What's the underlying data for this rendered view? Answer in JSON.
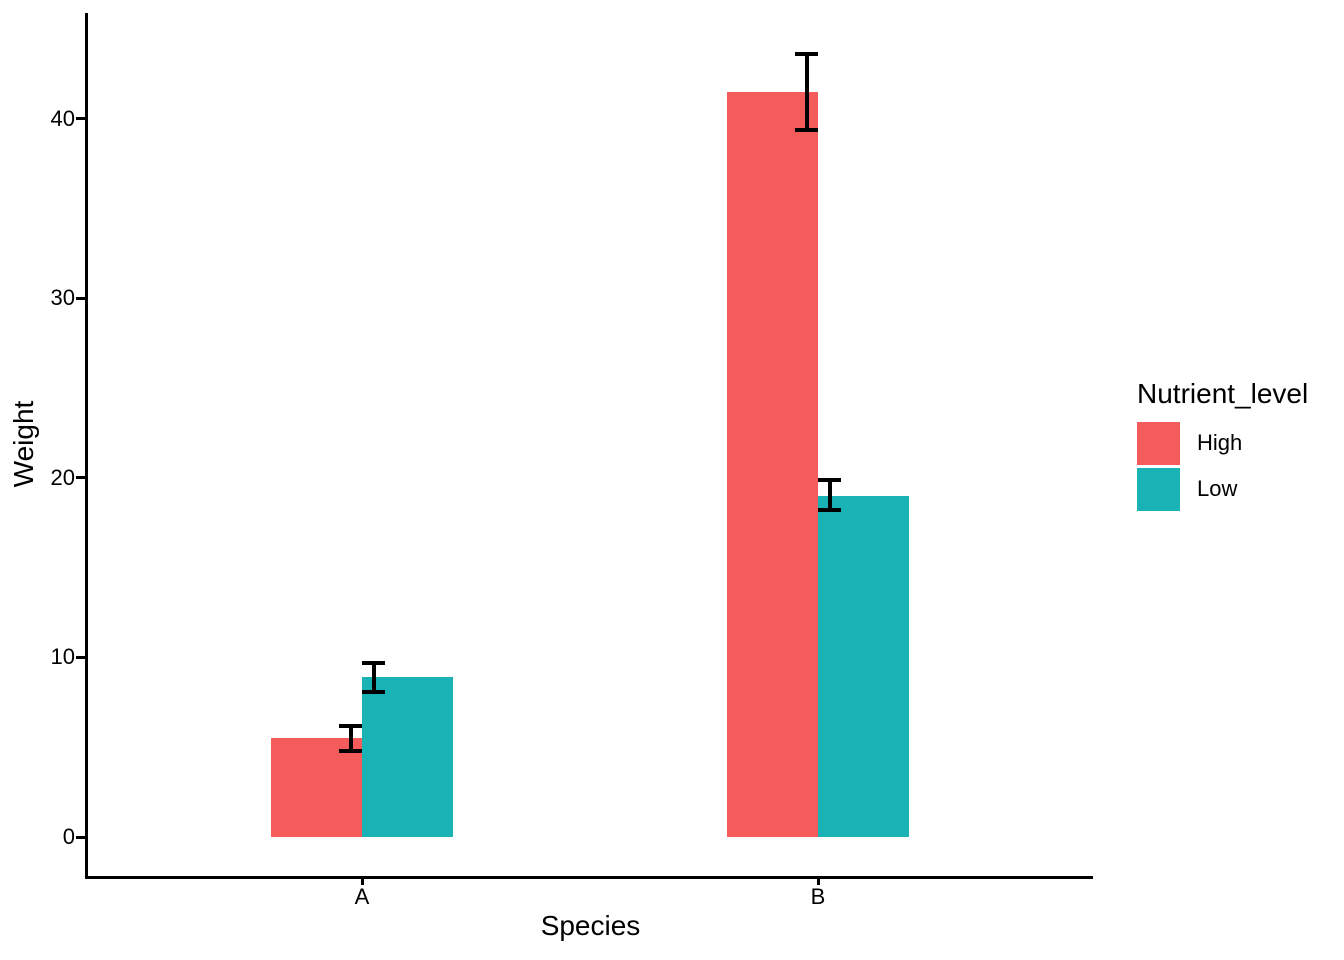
{
  "figure": {
    "background": "#FFFFFF",
    "text_color": "#000000",
    "axis_color": "#000000"
  },
  "chart_data": {
    "type": "bar",
    "title": "",
    "xlabel": "Species",
    "ylabel": "Weight",
    "categories": [
      "A",
      "B"
    ],
    "series": [
      {
        "name": "High",
        "color": "#F35C5B",
        "values": [
          5.5,
          41.5
        ],
        "error_low": [
          4.8,
          39.4
        ],
        "error_high": [
          6.2,
          43.6
        ]
      },
      {
        "name": "Low",
        "color": "#19B3B5",
        "values": [
          8.9,
          19.0
        ],
        "error_low": [
          8.1,
          18.2
        ],
        "error_high": [
          9.7,
          19.9
        ]
      }
    ],
    "y_ticks": [
      0,
      10,
      20,
      30,
      40
    ],
    "ylim": [
      0,
      45.9
    ],
    "grid": false,
    "legend": {
      "title": "Nutrient_level",
      "position": "right",
      "entries": [
        "High",
        "Low"
      ]
    }
  }
}
